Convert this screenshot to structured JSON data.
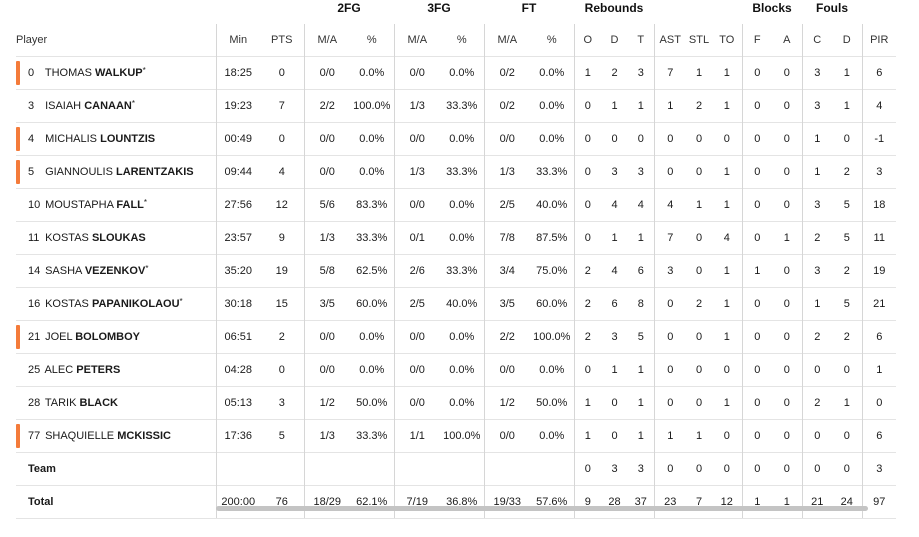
{
  "group_headers": {
    "fg2": "2FG",
    "fg3": "3FG",
    "ft": "FT",
    "rebounds": "Rebounds",
    "blocks": "Blocks",
    "fouls": "Fouls"
  },
  "columns": {
    "player": "Player",
    "min": "Min",
    "pts": "PTS",
    "fg2_ma": "M/A",
    "fg2_pct": "%",
    "fg3_ma": "M/A",
    "fg3_pct": "%",
    "ft_ma": "M/A",
    "ft_pct": "%",
    "reb_o": "O",
    "reb_d": "D",
    "reb_t": "T",
    "ast": "AST",
    "stl": "STL",
    "to": "TO",
    "blk_f": "F",
    "blk_a": "A",
    "foul_c": "C",
    "foul_d": "D",
    "pir": "PIR"
  },
  "accent_color": "#f47b3a",
  "rows": [
    {
      "num": "0",
      "first": "THOMAS",
      "last": "WALKUP",
      "star": "*",
      "marker": true,
      "min": "18:25",
      "pts": "0",
      "fg2_ma": "0/0",
      "fg2_pct": "0.0%",
      "fg3_ma": "0/0",
      "fg3_pct": "0.0%",
      "ft_ma": "0/2",
      "ft_pct": "0.0%",
      "reb_o": "1",
      "reb_d": "2",
      "reb_t": "3",
      "ast": "7",
      "stl": "1",
      "to": "1",
      "blk_f": "0",
      "blk_a": "0",
      "foul_c": "3",
      "foul_d": "1",
      "pir": "6"
    },
    {
      "num": "3",
      "first": "ISAIAH",
      "last": "CANAAN",
      "star": "*",
      "marker": false,
      "min": "19:23",
      "pts": "7",
      "fg2_ma": "2/2",
      "fg2_pct": "100.0%",
      "fg3_ma": "1/3",
      "fg3_pct": "33.3%",
      "ft_ma": "0/2",
      "ft_pct": "0.0%",
      "reb_o": "0",
      "reb_d": "1",
      "reb_t": "1",
      "ast": "1",
      "stl": "2",
      "to": "1",
      "blk_f": "0",
      "blk_a": "0",
      "foul_c": "3",
      "foul_d": "1",
      "pir": "4"
    },
    {
      "num": "4",
      "first": "MICHALIS",
      "last": "LOUNTZIS",
      "star": "",
      "marker": true,
      "min": "00:49",
      "pts": "0",
      "fg2_ma": "0/0",
      "fg2_pct": "0.0%",
      "fg3_ma": "0/0",
      "fg3_pct": "0.0%",
      "ft_ma": "0/0",
      "ft_pct": "0.0%",
      "reb_o": "0",
      "reb_d": "0",
      "reb_t": "0",
      "ast": "0",
      "stl": "0",
      "to": "0",
      "blk_f": "0",
      "blk_a": "0",
      "foul_c": "1",
      "foul_d": "0",
      "pir": "-1"
    },
    {
      "num": "5",
      "first": "GIANNOULIS",
      "last": "LARENTZAKIS",
      "star": "",
      "marker": true,
      "min": "09:44",
      "pts": "4",
      "fg2_ma": "0/0",
      "fg2_pct": "0.0%",
      "fg3_ma": "1/3",
      "fg3_pct": "33.3%",
      "ft_ma": "1/3",
      "ft_pct": "33.3%",
      "reb_o": "0",
      "reb_d": "3",
      "reb_t": "3",
      "ast": "0",
      "stl": "0",
      "to": "1",
      "blk_f": "0",
      "blk_a": "0",
      "foul_c": "1",
      "foul_d": "2",
      "pir": "3"
    },
    {
      "num": "10",
      "first": "MOUSTAPHA",
      "last": "FALL",
      "star": "*",
      "marker": false,
      "min": "27:56",
      "pts": "12",
      "fg2_ma": "5/6",
      "fg2_pct": "83.3%",
      "fg3_ma": "0/0",
      "fg3_pct": "0.0%",
      "ft_ma": "2/5",
      "ft_pct": "40.0%",
      "reb_o": "0",
      "reb_d": "4",
      "reb_t": "4",
      "ast": "4",
      "stl": "1",
      "to": "1",
      "blk_f": "0",
      "blk_a": "0",
      "foul_c": "3",
      "foul_d": "5",
      "pir": "18"
    },
    {
      "num": "11",
      "first": "KOSTAS",
      "last": "SLOUKAS",
      "star": "",
      "marker": false,
      "min": "23:57",
      "pts": "9",
      "fg2_ma": "1/3",
      "fg2_pct": "33.3%",
      "fg3_ma": "0/1",
      "fg3_pct": "0.0%",
      "ft_ma": "7/8",
      "ft_pct": "87.5%",
      "reb_o": "0",
      "reb_d": "1",
      "reb_t": "1",
      "ast": "7",
      "stl": "0",
      "to": "4",
      "blk_f": "0",
      "blk_a": "1",
      "foul_c": "2",
      "foul_d": "5",
      "pir": "11"
    },
    {
      "num": "14",
      "first": "SASHA",
      "last": "VEZENKOV",
      "star": "*",
      "marker": false,
      "min": "35:20",
      "pts": "19",
      "fg2_ma": "5/8",
      "fg2_pct": "62.5%",
      "fg3_ma": "2/6",
      "fg3_pct": "33.3%",
      "ft_ma": "3/4",
      "ft_pct": "75.0%",
      "reb_o": "2",
      "reb_d": "4",
      "reb_t": "6",
      "ast": "3",
      "stl": "0",
      "to": "1",
      "blk_f": "1",
      "blk_a": "0",
      "foul_c": "3",
      "foul_d": "2",
      "pir": "19"
    },
    {
      "num": "16",
      "first": "KOSTAS",
      "last": "PAPANIKOLAOU",
      "star": "*",
      "marker": false,
      "min": "30:18",
      "pts": "15",
      "fg2_ma": "3/5",
      "fg2_pct": "60.0%",
      "fg3_ma": "2/5",
      "fg3_pct": "40.0%",
      "ft_ma": "3/5",
      "ft_pct": "60.0%",
      "reb_o": "2",
      "reb_d": "6",
      "reb_t": "8",
      "ast": "0",
      "stl": "2",
      "to": "1",
      "blk_f": "0",
      "blk_a": "0",
      "foul_c": "1",
      "foul_d": "5",
      "pir": "21"
    },
    {
      "num": "21",
      "first": "JOEL",
      "last": "BOLOMBOY",
      "star": "",
      "marker": true,
      "min": "06:51",
      "pts": "2",
      "fg2_ma": "0/0",
      "fg2_pct": "0.0%",
      "fg3_ma": "0/0",
      "fg3_pct": "0.0%",
      "ft_ma": "2/2",
      "ft_pct": "100.0%",
      "reb_o": "2",
      "reb_d": "3",
      "reb_t": "5",
      "ast": "0",
      "stl": "0",
      "to": "1",
      "blk_f": "0",
      "blk_a": "0",
      "foul_c": "2",
      "foul_d": "2",
      "pir": "6"
    },
    {
      "num": "25",
      "first": "ALEC",
      "last": "PETERS",
      "star": "",
      "marker": false,
      "min": "04:28",
      "pts": "0",
      "fg2_ma": "0/0",
      "fg2_pct": "0.0%",
      "fg3_ma": "0/0",
      "fg3_pct": "0.0%",
      "ft_ma": "0/0",
      "ft_pct": "0.0%",
      "reb_o": "0",
      "reb_d": "1",
      "reb_t": "1",
      "ast": "0",
      "stl": "0",
      "to": "0",
      "blk_f": "0",
      "blk_a": "0",
      "foul_c": "0",
      "foul_d": "0",
      "pir": "1"
    },
    {
      "num": "28",
      "first": "TARIK",
      "last": "BLACK",
      "star": "",
      "marker": false,
      "min": "05:13",
      "pts": "3",
      "fg2_ma": "1/2",
      "fg2_pct": "50.0%",
      "fg3_ma": "0/0",
      "fg3_pct": "0.0%",
      "ft_ma": "1/2",
      "ft_pct": "50.0%",
      "reb_o": "1",
      "reb_d": "0",
      "reb_t": "1",
      "ast": "0",
      "stl": "0",
      "to": "1",
      "blk_f": "0",
      "blk_a": "0",
      "foul_c": "2",
      "foul_d": "1",
      "pir": "0"
    },
    {
      "num": "77",
      "first": "SHAQUIELLE",
      "last": "MCKISSIC",
      "star": "",
      "marker": true,
      "min": "17:36",
      "pts": "5",
      "fg2_ma": "1/3",
      "fg2_pct": "33.3%",
      "fg3_ma": "1/1",
      "fg3_pct": "100.0%",
      "ft_ma": "0/0",
      "ft_pct": "0.0%",
      "reb_o": "1",
      "reb_d": "0",
      "reb_t": "1",
      "ast": "1",
      "stl": "1",
      "to": "0",
      "blk_f": "0",
      "blk_a": "0",
      "foul_c": "0",
      "foul_d": "0",
      "pir": "6"
    }
  ],
  "team_row": {
    "label": "Team",
    "min": "",
    "pts": "",
    "fg2_ma": "",
    "fg2_pct": "",
    "fg3_ma": "",
    "fg3_pct": "",
    "ft_ma": "",
    "ft_pct": "",
    "reb_o": "0",
    "reb_d": "3",
    "reb_t": "3",
    "ast": "0",
    "stl": "0",
    "to": "0",
    "blk_f": "0",
    "blk_a": "0",
    "foul_c": "0",
    "foul_d": "0",
    "pir": "3"
  },
  "total_row": {
    "label": "Total",
    "min": "200:00",
    "pts": "76",
    "fg2_ma": "18/29",
    "fg2_pct": "62.1%",
    "fg3_ma": "7/19",
    "fg3_pct": "36.8%",
    "ft_ma": "19/33",
    "ft_pct": "57.6%",
    "reb_o": "9",
    "reb_d": "28",
    "reb_t": "37",
    "ast": "23",
    "stl": "7",
    "to": "12",
    "blk_f": "1",
    "blk_a": "1",
    "foul_c": "21",
    "foul_d": "24",
    "pir": "97"
  }
}
